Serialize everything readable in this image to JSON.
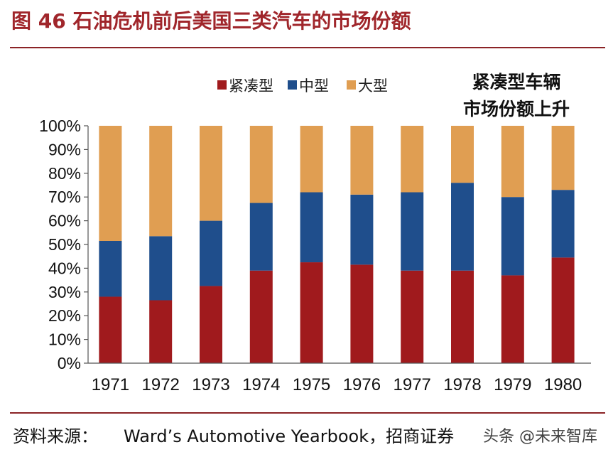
{
  "figure": {
    "title": "图 46 石油危机前后美国三类汽车的市场份额",
    "annotation": [
      "紧凑型车辆",
      "市场份额上升"
    ],
    "source_label": "资料来源：",
    "source_text": "Ward’s Automotive Yearbook，招商证券",
    "watermark": "头条 @未来智库"
  },
  "chart_data": {
    "type": "bar",
    "stacked": true,
    "categories": [
      "1971",
      "1972",
      "1973",
      "1974",
      "1975",
      "1976",
      "1977",
      "1978",
      "1979",
      "1980"
    ],
    "series": [
      {
        "name": "紧凑型",
        "color": "#A01A1D",
        "values": [
          28,
          26.5,
          32.5,
          39,
          42.5,
          41.5,
          39,
          39,
          37,
          44.5
        ]
      },
      {
        "name": "中型",
        "color": "#1F4E8C",
        "values": [
          23.5,
          27,
          27.5,
          28.5,
          29.5,
          29.5,
          33,
          37,
          33,
          28.5
        ]
      },
      {
        "name": "大型",
        "color": "#E09E52",
        "values": [
          48.5,
          46.5,
          40,
          32.5,
          28,
          29,
          28,
          24,
          30,
          27
        ]
      }
    ],
    "yticks": [
      "0%",
      "10%",
      "20%",
      "30%",
      "40%",
      "50%",
      "60%",
      "70%",
      "80%",
      "90%",
      "100%"
    ],
    "ylim": [
      0,
      100
    ],
    "legend_position": "top"
  }
}
